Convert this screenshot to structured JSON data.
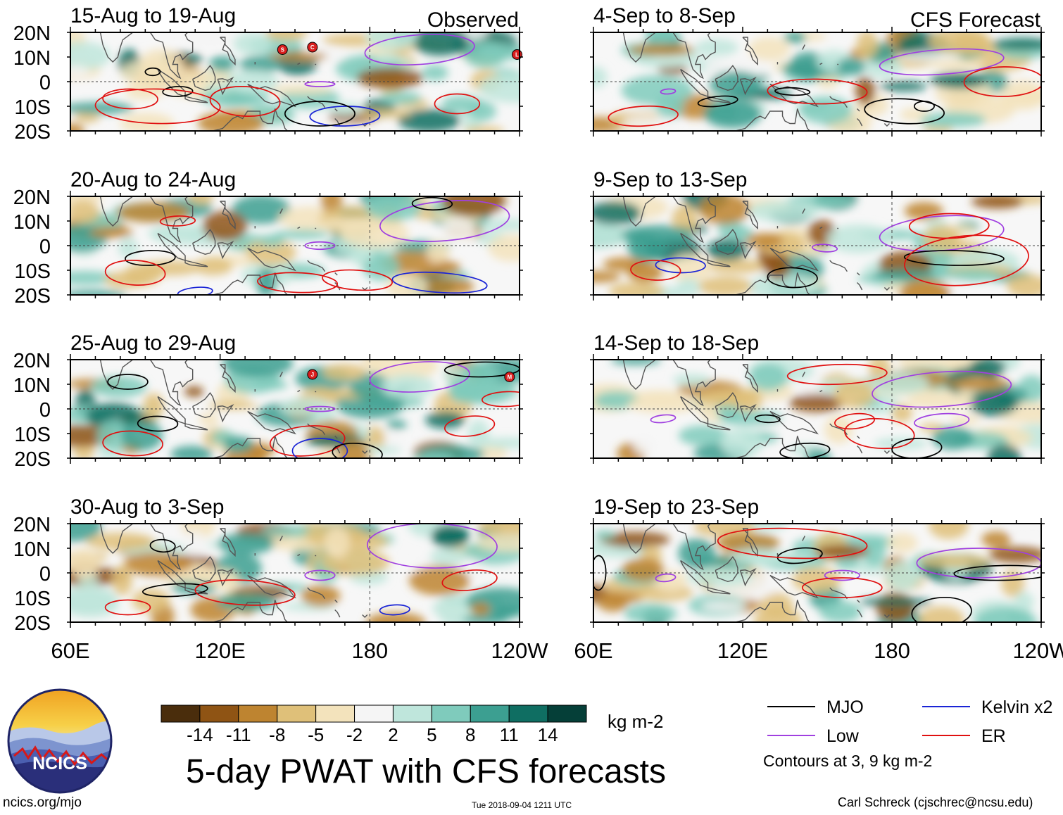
{
  "chart_data": {
    "type": "heatmap",
    "title": "5-day PWAT with CFS forecasts",
    "variable": "Precipitable water anomaly",
    "units": "kg m-2",
    "lon_ticks": [
      "60E",
      "120E",
      "180",
      "120W"
    ],
    "lat_ticks": [
      "20N",
      "10N",
      "0",
      "10S",
      "20S"
    ],
    "lon_range": [
      60,
      240
    ],
    "lat_range": [
      -20,
      20
    ],
    "colorbar": {
      "levels": [
        "-14",
        "-11",
        "-8",
        "-5",
        "-2",
        "2",
        "5",
        "8",
        "11",
        "14"
      ],
      "colors": [
        "#4a2d0c",
        "#8f5414",
        "#be8430",
        "#dfc079",
        "#f3e3bc",
        "#f5f5f5",
        "#bfe6dc",
        "#7fcbbc",
        "#3c9f91",
        "#0f6e62",
        "#053f38"
      ],
      "units_label": "kg m-2"
    },
    "columns": [
      {
        "label": "Observed",
        "panels": [
          "15-Aug to 19-Aug",
          "20-Aug to 24-Aug",
          "25-Aug to 29-Aug",
          "30-Aug to 3-Sep"
        ]
      },
      {
        "label": "CFS Forecast",
        "panels": [
          "4-Sep to 8-Sep",
          "9-Sep to 13-Sep",
          "14-Sep to 18-Sep",
          "19-Sep to 23-Sep"
        ]
      }
    ],
    "legend": [
      {
        "label": "MJO",
        "color": "#000000"
      },
      {
        "label": "Kelvin x2",
        "color": "#1a24d6"
      },
      {
        "label": "Low",
        "color": "#a040e0"
      },
      {
        "label": "ER",
        "color": "#e01010"
      }
    ],
    "contours_note": "Contours at 3, 9 kg m-2",
    "storm_markers": [
      {
        "panel": 0,
        "lon": 145,
        "lat": 13,
        "letter": "S"
      },
      {
        "panel": 0,
        "lon": 157,
        "lat": 14,
        "letter": "C"
      },
      {
        "panel": 0,
        "lon": 239,
        "lat": 11,
        "letter": "L"
      },
      {
        "panel": 2,
        "lon": 157,
        "lat": 14,
        "letter": "J"
      },
      {
        "panel": 2,
        "lon": 236,
        "lat": 13,
        "letter": "M"
      }
    ]
  },
  "footer": {
    "site": "ncics.org/mjo",
    "timestamp": "Tue 2018-09-04 1211 UTC",
    "author": "Carl Schreck (cjschrec@ncsu.edu)",
    "logo_text": "NCICS"
  }
}
